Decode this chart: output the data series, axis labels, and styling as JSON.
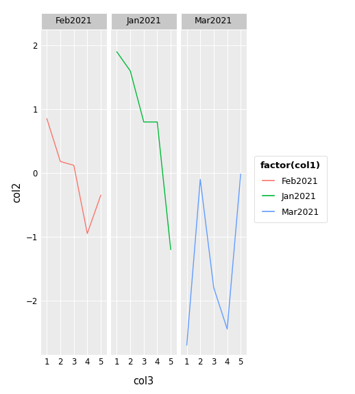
{
  "panels": [
    {
      "label": "Feb2021",
      "x": [
        1,
        2,
        3,
        4,
        5
      ],
      "y": [
        0.85,
        0.18,
        0.12,
        -0.95,
        -0.35
      ],
      "color": "#F8766D"
    },
    {
      "label": "Jan2021",
      "x": [
        1,
        2,
        3,
        4,
        5
      ],
      "y": [
        1.9,
        1.6,
        0.8,
        0.8,
        -1.2
      ],
      "color": "#00BA38"
    },
    {
      "label": "Mar2021",
      "x": [
        1,
        2,
        3,
        4,
        5
      ],
      "y": [
        -2.7,
        -0.1,
        -1.8,
        -2.45,
        -0.02
      ],
      "color": "#619CFF"
    }
  ],
  "ylim": [
    -2.85,
    2.25
  ],
  "yticks": [
    -2,
    -1,
    0,
    1,
    2
  ],
  "xticks": [
    1,
    2,
    3,
    4,
    5
  ],
  "xlabel": "col3",
  "ylabel": "col2",
  "legend_title": "factor(col1)",
  "panel_bg": "#EBEBEB",
  "grid_color": "#FFFFFF",
  "strip_bg": "#C8C8C8",
  "strip_text_color": "#000000",
  "fig_bg": "#FFFFFF",
  "divider_color": "#FFFFFF"
}
